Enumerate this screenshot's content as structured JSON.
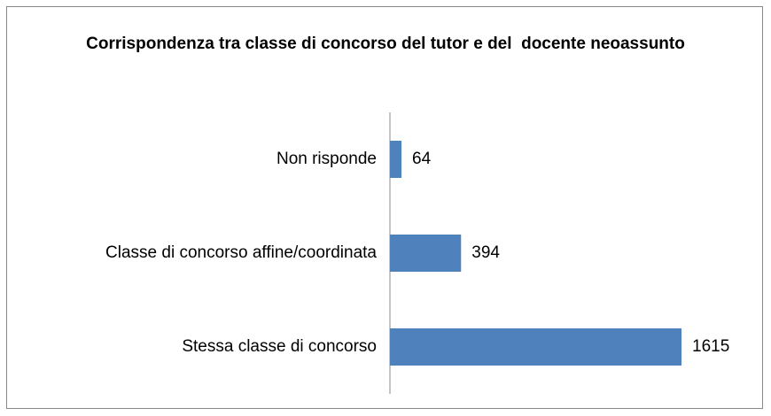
{
  "chart_data": {
    "type": "bar",
    "orientation": "horizontal",
    "title": "Corrispondenza tra classe di concorso del tutor e del  docente neoassunto",
    "categories": [
      "Non risponde",
      "Classe di concorso affine/coordinata",
      "Stessa classe di concorso"
    ],
    "values": [
      64,
      394,
      1615
    ],
    "color": "#4f81bd"
  }
}
